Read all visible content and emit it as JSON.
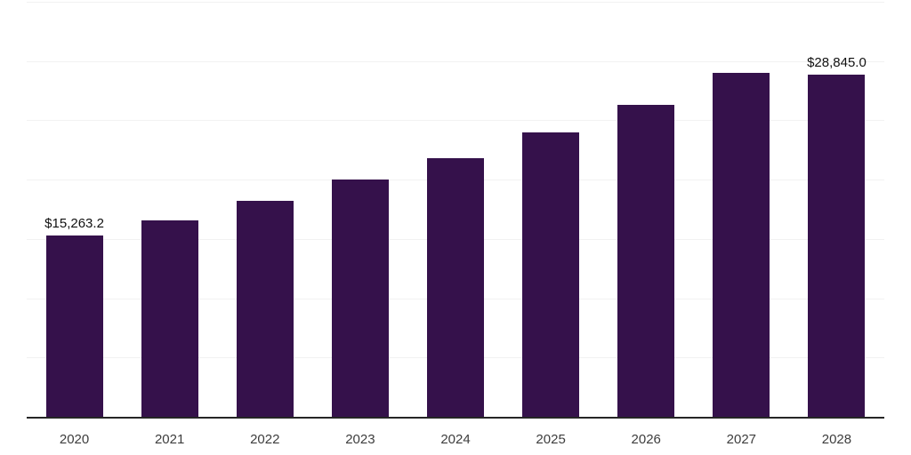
{
  "chart_data": {
    "type": "bar",
    "title": "",
    "xlabel": "",
    "ylabel": "",
    "categories": [
      "2020",
      "2021",
      "2022",
      "2023",
      "2024",
      "2025",
      "2026",
      "2027",
      "2028"
    ],
    "values": [
      15263.2,
      16580,
      18190,
      19980,
      21830,
      24020,
      26270,
      29010,
      28845.0
    ],
    "data_labels": [
      "$15,263.2",
      null,
      null,
      null,
      null,
      null,
      null,
      null,
      "$28,845.0"
    ],
    "ylim": [
      0,
      35000
    ],
    "grid_step": 5000,
    "grid": "on",
    "legend": "none",
    "y_tick_labels_visible": false,
    "colors": {
      "bar": "#35114B",
      "gridline": "#F2F2F2",
      "axis_line": "#262626",
      "value_label": "#111111",
      "tick_label": "#3D3D3D",
      "background": "#FFFFFF"
    }
  }
}
